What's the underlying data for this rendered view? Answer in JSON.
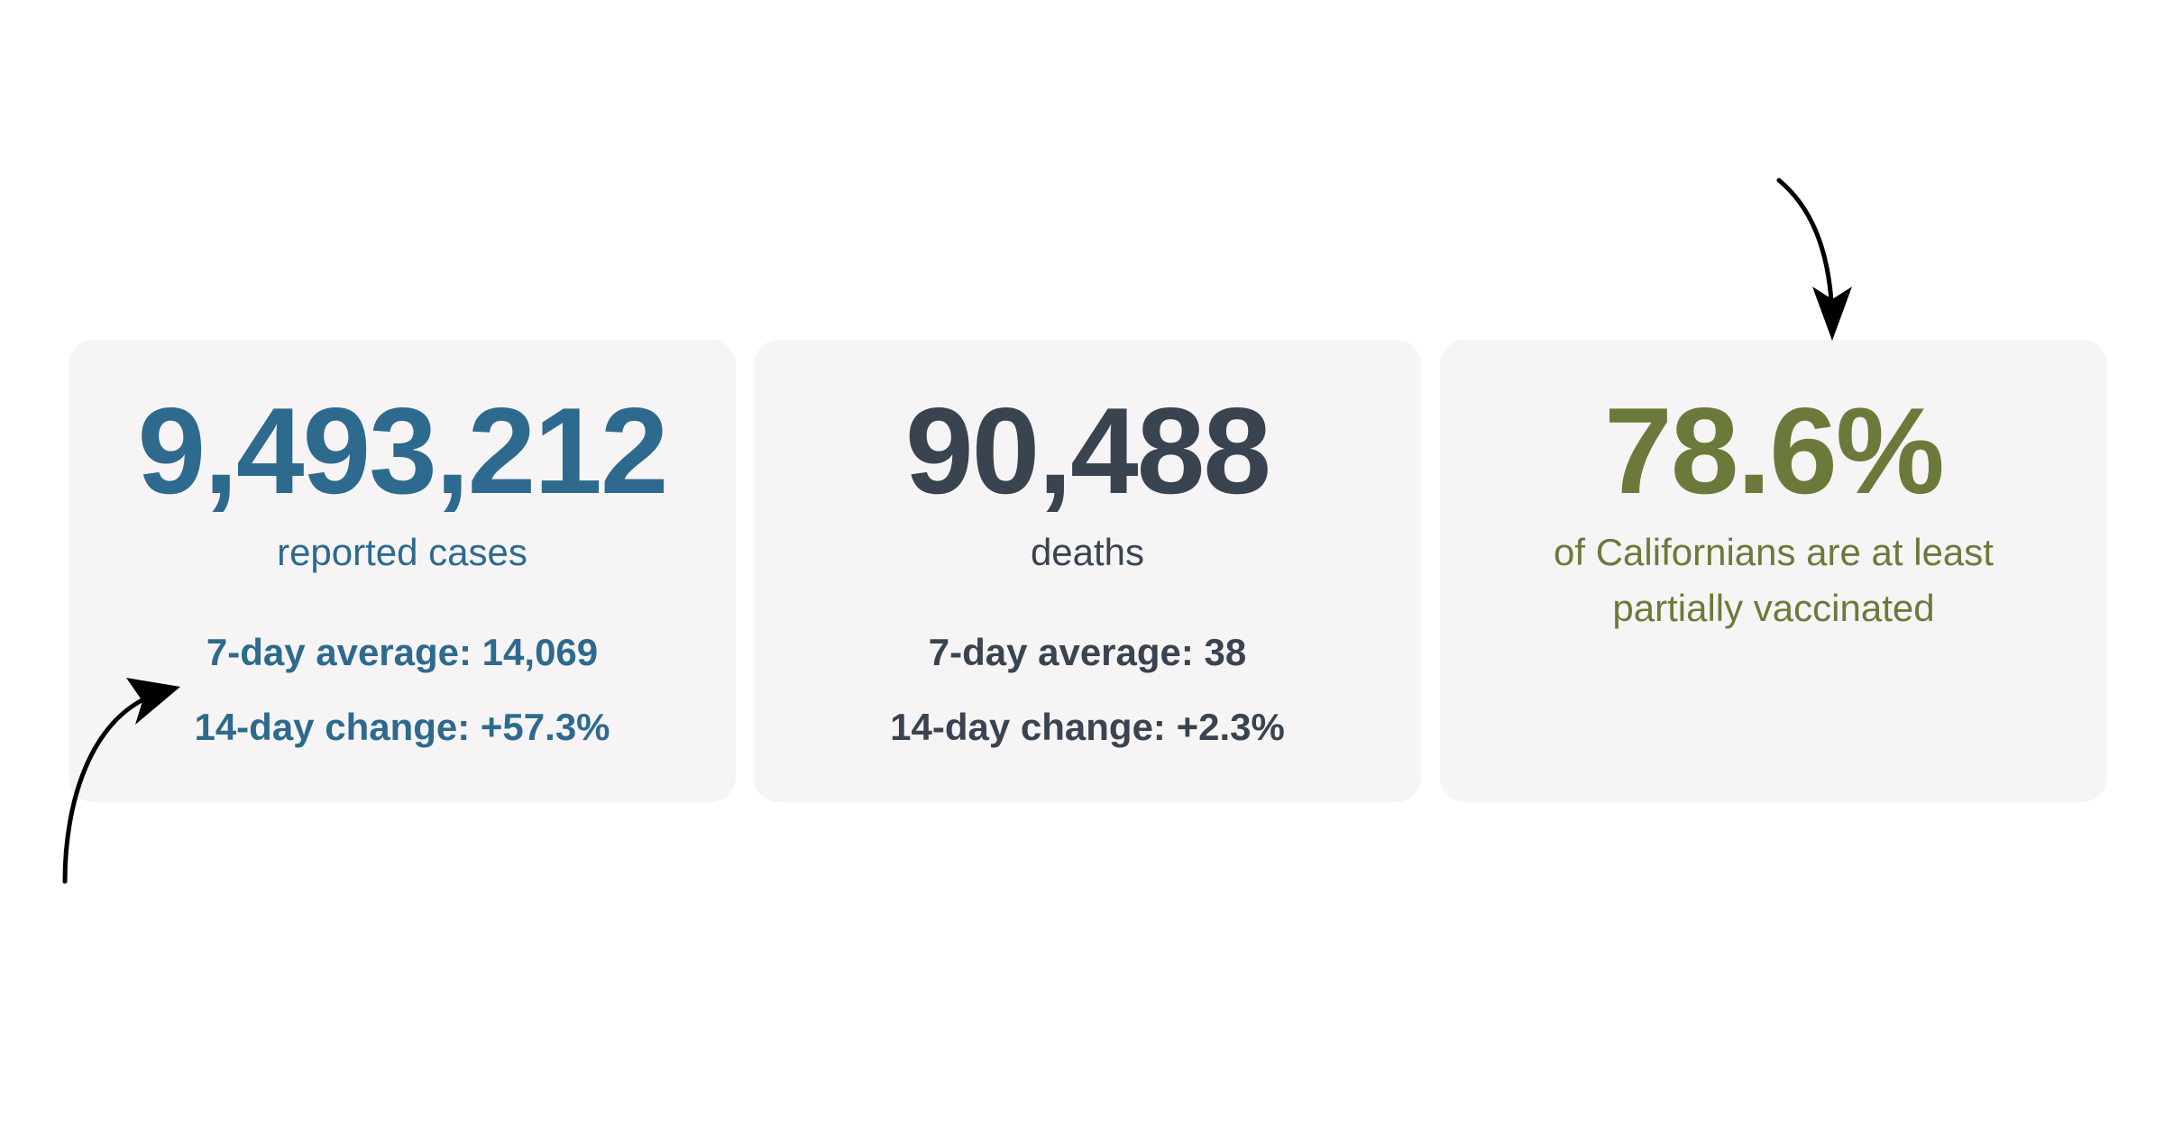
{
  "cards": {
    "cases": {
      "value": "9,493,212",
      "label": "reported cases",
      "avg": "7-day average: 14,069",
      "change": "14-day change: +57.3%",
      "color": "#2d6a8e"
    },
    "deaths": {
      "value": "90,488",
      "label": "deaths",
      "avg": "7-day average: 38",
      "change": "14-day change: +2.3%",
      "color": "#3a4350"
    },
    "vaccinated": {
      "value": "78.6%",
      "label": "of Californians are at least partially vaccinated",
      "color": "#6b7a3a"
    }
  },
  "annotations": {
    "arrow_color": "#000000",
    "icons": [
      "curved-arrow-icon",
      "curved-arrow-icon"
    ]
  }
}
